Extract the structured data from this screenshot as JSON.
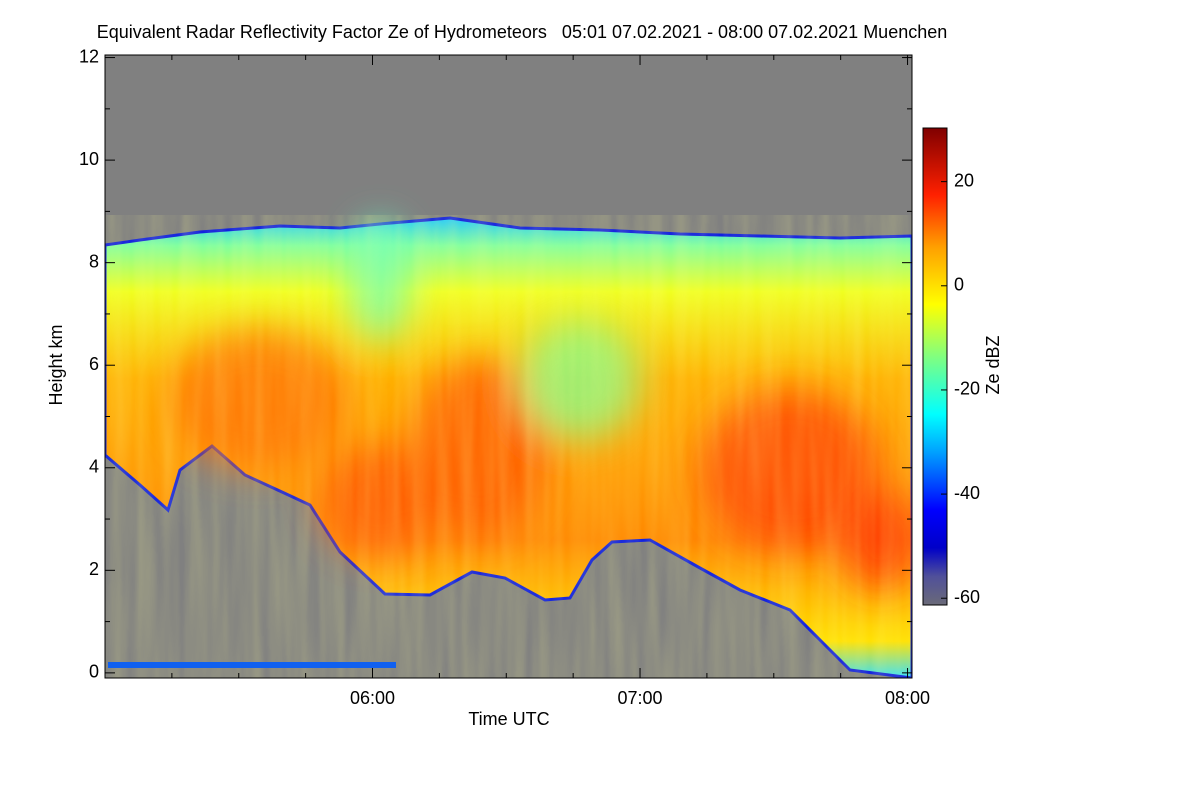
{
  "chart_data": {
    "type": "heatmap",
    "title": "Equivalent Radar Reflectivity Factor Ze of Hydrometeors   05:01 07.02.2021 - 08:00 07.02.2021 Muenchen",
    "x_label": "Time UTC",
    "y_label": "Height km",
    "colorbar_label": "Ze dBZ",
    "xlim": [
      300,
      481
    ],
    "xticks": [
      {
        "value": 360,
        "label": "06:00"
      },
      {
        "value": 420,
        "label": "07:00"
      },
      {
        "value": 480,
        "label": "08:00"
      }
    ],
    "xminorticks": [
      315,
      330,
      345,
      375,
      390,
      405,
      435,
      450,
      465
    ],
    "ylim": [
      -0.1,
      12.05
    ],
    "yticks": [
      0,
      2,
      4,
      6,
      8,
      10,
      12
    ],
    "yminorticks": [
      1,
      3,
      5,
      7,
      9,
      11
    ],
    "clim": [
      -61.3,
      30.3
    ],
    "cticks": [
      -60,
      -40,
      -20,
      0,
      20
    ]
  }
}
